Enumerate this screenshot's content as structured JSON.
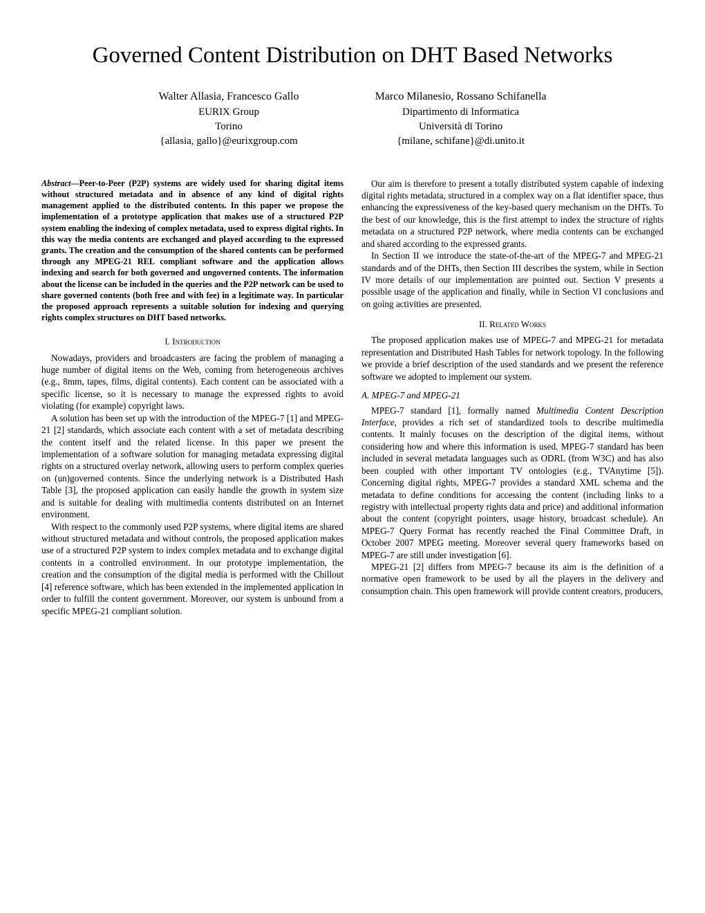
{
  "title": "Governed Content Distribution on DHT Based Networks",
  "authors": {
    "left": {
      "names": "Walter Allasia, Francesco Gallo",
      "affil1": "EURIX Group",
      "affil2": "Torino",
      "email": "{allasia, gallo}@eurixgroup.com"
    },
    "right": {
      "names": "Marco Milanesio, Rossano Schifanella",
      "affil1": "Dipartimento di Informatica",
      "affil2": "Università di Torino",
      "email": "{milane, schifane}@di.unito.it"
    }
  },
  "abstract_lead": "Abstract",
  "abstract_body": "—Peer-to-Peer (P2P) systems are widely used for sharing digital items without structured metadata and in absence of any kind of digital rights management applied to the distributed contents. In this paper we propose the implementation of a prototype application that makes use of a structured P2P system enabling the indexing of complex metadata, used to express digital rights. In this way the media contents are exchanged and played according to the expressed grants. The creation and the consumption of the shared contents can be performed through any MPEG-21 REL compliant software and the application allows indexing and search for both governed and ungoverned contents. The information about the license can be included in the queries and the P2P network can be used to share governed contents (both free and with fee) in a legitimate way. In particular the proposed approach represents a suitable solution for indexing and querying rights complex structures on DHT based networks.",
  "sec1_heading": "I. Introduction",
  "sec1_p1": "Nowadays, providers and broadcasters are facing the problem of managing a huge number of digital items on the Web, coming from heterogeneous archives (e.g., 8mm, tapes, films, digital contents). Each content can be associated with a specific license, so it is necessary to manage the expressed rights to avoid violating (for example) copyright laws.",
  "sec1_p2": "A solution has been set up with the introduction of the MPEG-7 [1] and MPEG-21 [2] standards, which associate each content with a set of metadata describing the content itself and the related license. In this paper we present the implementation of a software solution for managing metadata expressing digital rights on a structured overlay network, allowing users to perform complex queries on (un)governed contents. Since the underlying network is a Distributed Hash Table [3], the proposed application can easily handle the growth in system size and is suitable for dealing with multimedia contents distributed on an Internet environment.",
  "sec1_p3": "With respect to the commonly used P2P systems, where digital items are shared without structured metadata and without controls, the proposed application makes use of a structured P2P system to index complex metadata and to exchange digital contents in a controlled environment. In our prototype implementation, the creation and the consumption of the digital media is performed with the Chillout [4] reference software, which has been extended in the implemented application in order to fulfill the content government. Moreover, our system is unbound from a specific MPEG-21 compliant solution.",
  "col2_p1": "Our aim is therefore to present a totally distributed system capable of indexing digital rights metadata, structured in a complex way on a flat identifier space, thus enhancing the expressiveness of the key-based query mechanism on the DHTs. To the best of our knowledge, this is the first attempt to index the structure of rights metadata on a structured P2P network, where media contents can be exchanged and shared according to the expressed grants.",
  "col2_p2": "In Section II we introduce the state-of-the-art of the MPEG-7 and MPEG-21 standards and of the DHTs, then Section III describes the system, while in Section IV more details of our implementation are pointed out. Section V presents a possible usage of the application and finally, while in Section VI conclusions and on going activities are presented.",
  "sec2_heading": "II. Related Works",
  "sec2_p1": "The proposed application makes use of MPEG-7 and MPEG-21 for metadata representation and Distributed Hash Tables for network topology. In the following we provide a brief description of the used standards and we present the reference software we adopted to implement our system.",
  "sec2a_heading": "A. MPEG-7 and MPEG-21",
  "sec2a_p1_a": "MPEG-7 standard [1], formally named ",
  "sec2a_p1_em": "Multimedia Content Description Interface",
  "sec2a_p1_b": ", provides a rich set of standardized tools to describe multimedia contents. It mainly focuses on the description of the digital items, without considering how and where this information is used. MPEG-7 standard has been included in several metadata languages such as ODRL (from W3C) and has also been coupled with other important TV ontologies (e.g., TVAnytime [5]). Concerning digital rights, MPEG-7 provides a standard XML schema and the metadata to define conditions for accessing the content (including links to a registry with intellectual property rights data and price) and additional information about the content (copyright pointers, usage history, broadcast schedule). An MPEG-7 Query Format has recently reached the Final Committee Draft, in October 2007 MPEG meeting. Moreover several query frameworks based on MPEG-7 are still under investigation [6].",
  "sec2a_p2": "MPEG-21 [2] differs from MPEG-7 because its aim is the definition of a normative open framework to be used by all the players in the delivery and consumption chain. This open framework will provide content creators, producers,"
}
